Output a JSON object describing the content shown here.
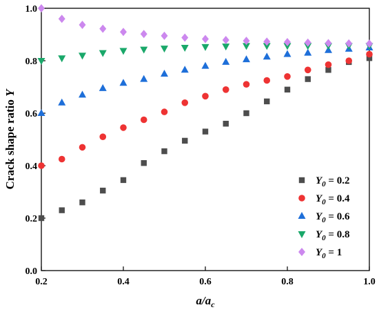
{
  "chart_data": {
    "type": "scatter",
    "xlabel": "a/a_c",
    "ylabel": "Crack shape ratio Y",
    "xlim": [
      0.2,
      1.0
    ],
    "ylim": [
      0.0,
      1.0
    ],
    "xticks": [
      "0.2",
      "0.4",
      "0.6",
      "0.8",
      "1.0"
    ],
    "yticks": [
      "0.0",
      "0.2",
      "0.4",
      "0.6",
      "0.8",
      "1.0"
    ],
    "grid": false,
    "legend_position": "bottom-right",
    "x": [
      0.2,
      0.25,
      0.3,
      0.35,
      0.4,
      0.45,
      0.5,
      0.55,
      0.6,
      0.65,
      0.7,
      0.75,
      0.8,
      0.85,
      0.9,
      0.95,
      1.0
    ],
    "series": [
      {
        "name": "Y0 = 0.2",
        "legend_main": "Y",
        "legend_sub": "0",
        "legend_value": " = 0.2",
        "marker": "square",
        "color": "#4d4d4d",
        "values": [
          0.2,
          0.23,
          0.26,
          0.305,
          0.345,
          0.41,
          0.455,
          0.495,
          0.53,
          0.56,
          0.6,
          0.645,
          0.69,
          0.73,
          0.765,
          0.795,
          0.81
        ]
      },
      {
        "name": "Y0 = 0.4",
        "legend_main": "Y",
        "legend_sub": "0",
        "legend_value": " = 0.4",
        "marker": "circle",
        "color": "#ee3333",
        "values": [
          0.4,
          0.425,
          0.47,
          0.51,
          0.545,
          0.575,
          0.605,
          0.64,
          0.665,
          0.69,
          0.71,
          0.725,
          0.74,
          0.765,
          0.785,
          0.8,
          0.825
        ]
      },
      {
        "name": "Y0 = 0.6",
        "legend_main": "Y",
        "legend_sub": "0",
        "legend_value": " = 0.6",
        "marker": "triangle-up",
        "color": "#1e6fd9",
        "values": [
          0.6,
          0.64,
          0.67,
          0.695,
          0.715,
          0.73,
          0.75,
          0.765,
          0.78,
          0.795,
          0.805,
          0.815,
          0.825,
          0.83,
          0.84,
          0.845,
          0.85
        ]
      },
      {
        "name": "Y0 = 0.8",
        "legend_main": "Y",
        "legend_sub": "0",
        "legend_value": " = 0.8",
        "marker": "triangle-down",
        "color": "#1aa86a",
        "values": [
          0.8,
          0.81,
          0.82,
          0.83,
          0.838,
          0.843,
          0.847,
          0.85,
          0.853,
          0.855,
          0.857,
          0.857,
          0.857,
          0.857,
          0.857,
          0.857,
          0.857
        ]
      },
      {
        "name": "Y0 = 1",
        "legend_main": "Y",
        "legend_sub": "0",
        "legend_value": " = 1",
        "marker": "diamond",
        "color": "#cc88ee",
        "values": [
          1.0,
          0.96,
          0.937,
          0.922,
          0.91,
          0.902,
          0.895,
          0.888,
          0.883,
          0.879,
          0.876,
          0.873,
          0.871,
          0.869,
          0.867,
          0.866,
          0.865
        ]
      }
    ]
  }
}
